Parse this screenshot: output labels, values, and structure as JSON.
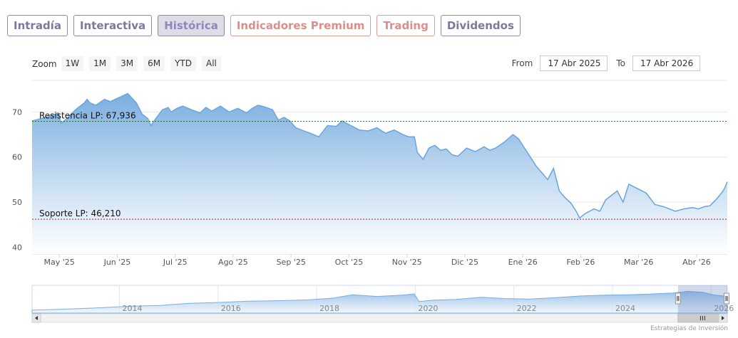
{
  "tabs": [
    {
      "label": "Intradía",
      "kind": "normal"
    },
    {
      "label": "Interactiva",
      "kind": "normal"
    },
    {
      "label": "Histórica",
      "kind": "active"
    },
    {
      "label": "Indicadores Premium",
      "kind": "premium"
    },
    {
      "label": "Trading",
      "kind": "trading"
    },
    {
      "label": "Dividendos",
      "kind": "dividendos"
    }
  ],
  "zoom": {
    "label": "Zoom",
    "buttons": [
      "1W",
      "1M",
      "3M",
      "6M",
      "YTD",
      "All"
    ]
  },
  "range": {
    "from_label": "From",
    "from_value": "17 Abr 2025",
    "to_label": "To",
    "to_value": "17 Abr 2026"
  },
  "credits": "Estrategias de Inversión",
  "colors": {
    "fill_top": "#7aaee0",
    "fill_bottom": "#ffffff",
    "line": "#6aa5dc",
    "resistance": "#2f6b2f",
    "support": "#8a2b2b"
  },
  "chart_data": {
    "type": "area",
    "yticks": [
      40,
      50,
      60,
      70
    ],
    "ylim": [
      38.5,
      77
    ],
    "xtick_labels": [
      "May '25",
      "Jun '25",
      "Jul '25",
      "Ago '25",
      "Sep '25",
      "Oct '25",
      "Nov '25",
      "Dic '25",
      "Ene '26",
      "Feb '26",
      "Mar '26",
      "Abr '26"
    ],
    "xtick_months": [
      0.47,
      1.47,
      2.47,
      3.47,
      4.47,
      5.47,
      6.47,
      7.47,
      8.47,
      9.47,
      10.47,
      11.47
    ],
    "xlim_months": [
      0,
      12
    ],
    "resistance": {
      "label": "Resistencia LP: 67,936",
      "value": 67.936
    },
    "support": {
      "label": "Soporte LP: 46,210",
      "value": 46.21
    },
    "series": [
      {
        "x_months": [
          0,
          0.15,
          0.3,
          0.45,
          0.5,
          0.6,
          0.75,
          0.9,
          0.95,
          1.0,
          1.1,
          1.25,
          1.35,
          1.5,
          1.65,
          1.8,
          1.9,
          2.0,
          2.05,
          2.15,
          2.25,
          2.35,
          2.4,
          2.5,
          2.6,
          2.75,
          2.9,
          3.0,
          3.1,
          3.25,
          3.4,
          3.55,
          3.7,
          3.8,
          3.9,
          4.0,
          4.15,
          4.25,
          4.35,
          4.45,
          4.55,
          4.65,
          4.8,
          4.95,
          5.1,
          5.25,
          5.35,
          5.5,
          5.65,
          5.8,
          5.95,
          6.1,
          6.25,
          6.4,
          6.5,
          6.6,
          6.65,
          6.75,
          6.85,
          6.95,
          7.05,
          7.15,
          7.25,
          7.35,
          7.5,
          7.65,
          7.8,
          7.9,
          8.0,
          8.15,
          8.3,
          8.4,
          8.5,
          8.6,
          8.7,
          8.8,
          8.9,
          9.0,
          9.1,
          9.2,
          9.3,
          9.4,
          9.45,
          9.55,
          9.7,
          9.8,
          9.9,
          10.0,
          10.1,
          10.2,
          10.3,
          10.45,
          10.6,
          10.75,
          10.9,
          11.0,
          11.1,
          11.25,
          11.4,
          11.5,
          11.6,
          11.7,
          11.8,
          11.9,
          11.95,
          12.0
        ],
        "values": [
          68.0,
          68.5,
          69.0,
          69.8,
          67.5,
          68.5,
          70.5,
          72.0,
          72.8,
          72.0,
          71.5,
          72.8,
          72.3,
          73.2,
          74.1,
          72.0,
          69.5,
          68.5,
          67.0,
          68.8,
          70.5,
          71.0,
          70.0,
          70.8,
          71.3,
          70.5,
          69.8,
          71.0,
          70.2,
          71.3,
          70.0,
          70.8,
          69.8,
          70.8,
          71.5,
          71.2,
          70.5,
          68.2,
          68.8,
          68.0,
          66.5,
          66.0,
          65.3,
          64.5,
          67.0,
          66.8,
          68.0,
          67.0,
          66.0,
          65.8,
          66.5,
          65.3,
          66.0,
          65.0,
          64.5,
          64.5,
          61.0,
          59.5,
          62.0,
          62.6,
          61.5,
          61.8,
          60.5,
          60.2,
          62.0,
          61.2,
          62.3,
          61.5,
          62.0,
          63.3,
          65.0,
          64.0,
          62.0,
          60.0,
          58.0,
          56.5,
          55.0,
          57.5,
          52.5,
          51.0,
          49.8,
          47.8,
          46.5,
          47.5,
          48.5,
          48.0,
          50.5,
          51.5,
          52.5,
          50.0,
          54.0,
          53.0,
          52.0,
          49.5,
          49.0,
          48.5,
          48.0,
          48.5,
          48.8,
          48.5,
          49.0,
          49.2,
          50.5,
          52.0,
          53.0,
          54.5
        ]
      }
    ],
    "navigator": {
      "tick_labels": [
        "2014",
        "2016",
        "2018",
        "2020",
        "2022",
        "2024",
        "2026"
      ],
      "tick_years": [
        2014,
        2016,
        2018,
        2020,
        2022,
        2024,
        2026
      ],
      "xlim_years": [
        2012.2,
        2026.3
      ],
      "ylim": [
        15,
        80
      ],
      "x_years": [
        2012.2,
        2012.8,
        2013.5,
        2014.2,
        2014.8,
        2015.4,
        2016.0,
        2016.6,
        2017.2,
        2017.8,
        2018.3,
        2018.7,
        2019.2,
        2019.7,
        2019.95,
        2020.05,
        2020.3,
        2020.8,
        2021.3,
        2021.8,
        2022.3,
        2022.8,
        2023.3,
        2023.8,
        2024.3,
        2024.8,
        2025.2,
        2025.5,
        2025.8,
        2026.0,
        2026.3
      ],
      "values": [
        22,
        24,
        27,
        31,
        33,
        38,
        40,
        43,
        44,
        46,
        50,
        58,
        54,
        57,
        60,
        42,
        45,
        47,
        52,
        49,
        48,
        51,
        55,
        57,
        58,
        60,
        62,
        66,
        64,
        58,
        54
      ],
      "selected_years": [
        2025.3,
        2026.3
      ]
    }
  }
}
